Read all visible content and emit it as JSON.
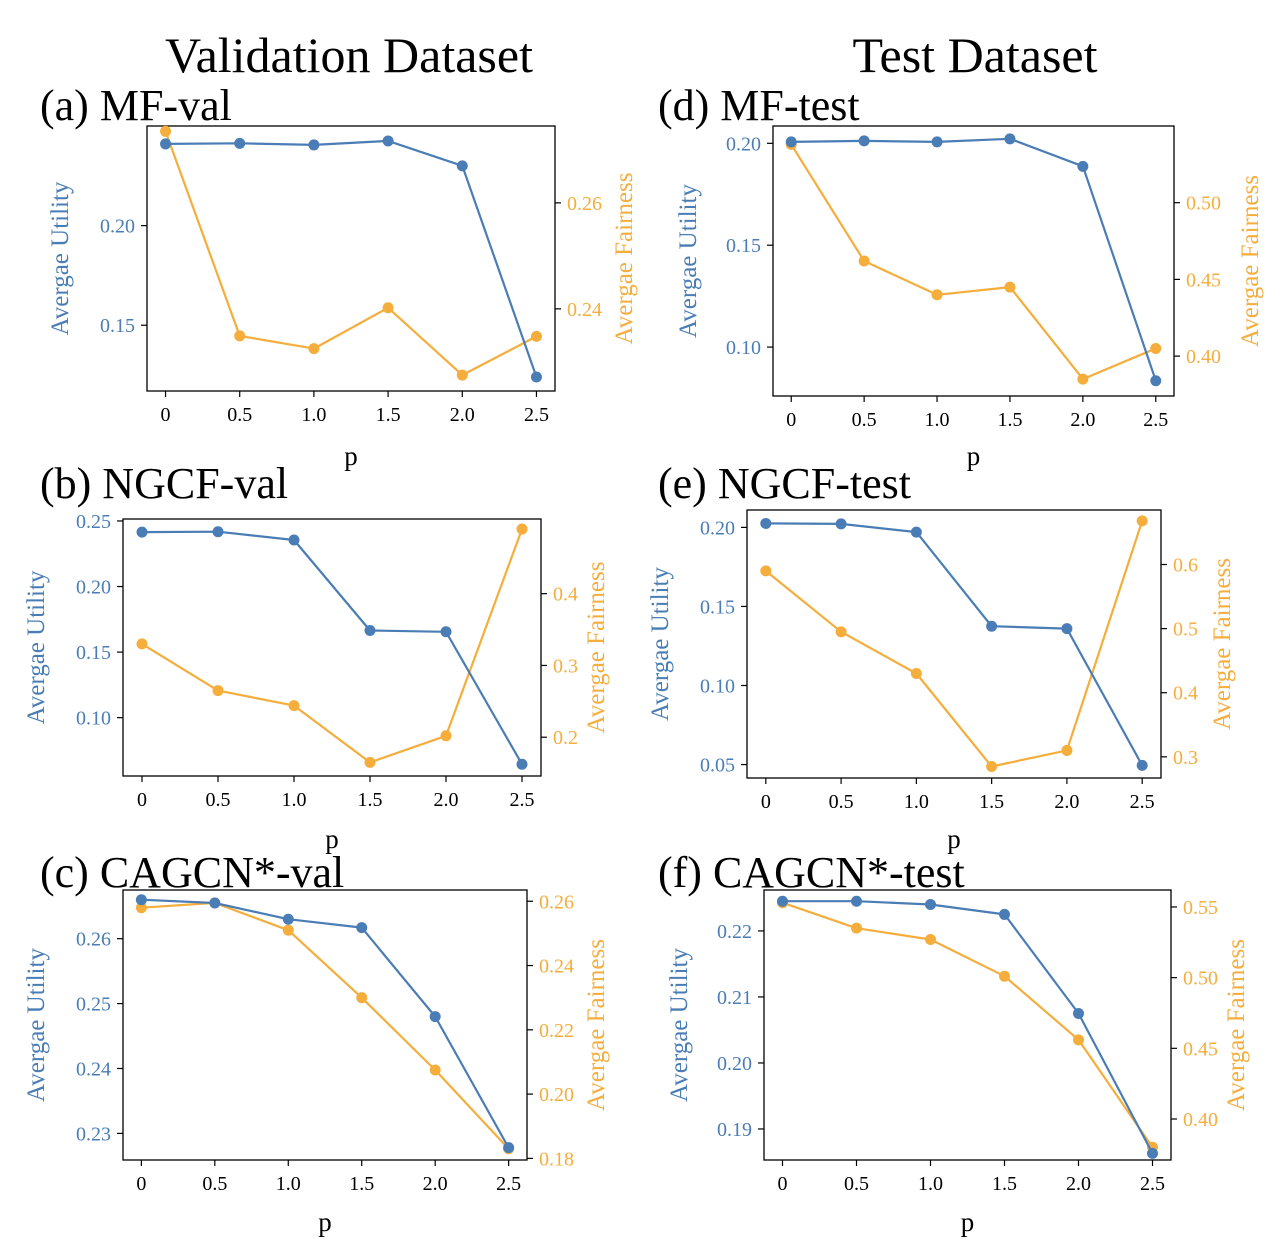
{
  "column_titles": [
    "Validation Dataset",
    "Test Dataset"
  ],
  "colors": {
    "utility": "#4a7db5",
    "fairness": "#f5ad3b",
    "axis": "#000000"
  },
  "chart_data": [
    {
      "id": "a",
      "title": "(a) MF-val",
      "type": "line",
      "xlabel": "p",
      "ylabel_left": "Avergae Utility",
      "ylabel_right": "Avergae Fairness",
      "x": [
        0,
        0.5,
        1.0,
        1.5,
        2.0,
        2.5
      ],
      "x_tick_labels": [
        "0",
        "0.5",
        "1.0",
        "1.5",
        "2.0",
        "2.5"
      ],
      "xlim": [
        -0.125,
        2.625
      ],
      "left": {
        "name": "Avergae Utility",
        "values": [
          0.241,
          0.2413,
          0.2405,
          0.2425,
          0.23,
          0.124
        ],
        "ylim": [
          0.117,
          0.25
        ],
        "ticks": [
          0.15,
          0.2
        ],
        "tick_labels": [
          "0.15",
          "0.20"
        ]
      },
      "right": {
        "name": "Avergae Fairness",
        "values": [
          0.2735,
          0.2349,
          0.2325,
          0.2402,
          0.2275,
          0.2348
        ],
        "ylim": [
          0.2245,
          0.2745
        ],
        "ticks": [
          0.24,
          0.26
        ],
        "tick_labels": [
          "0.24",
          "0.26"
        ]
      }
    },
    {
      "id": "b",
      "title": "(b) NGCF-val",
      "type": "line",
      "xlabel": "p",
      "ylabel_left": "Avergae Utility",
      "ylabel_right": "Avergae Fairness",
      "x": [
        0,
        0.5,
        1.0,
        1.5,
        2.0,
        2.5
      ],
      "x_tick_labels": [
        "0",
        "0.5",
        "1.0",
        "1.5",
        "2.0",
        "2.5"
      ],
      "xlim": [
        -0.125,
        2.625
      ],
      "left": {
        "name": "Avergae Utility",
        "values": [
          0.2415,
          0.2418,
          0.2355,
          0.1665,
          0.1655,
          0.0645
        ],
        "ylim": [
          0.0555,
          0.2515
        ],
        "ticks": [
          0.1,
          0.15,
          0.2,
          0.25
        ],
        "tick_labels": [
          "0.10",
          "0.15",
          "0.20",
          "0.25"
        ]
      },
      "right": {
        "name": "Avergae Fairness",
        "values": [
          0.33,
          0.265,
          0.244,
          0.165,
          0.202,
          0.49
        ],
        "ylim": [
          0.146,
          0.504
        ],
        "ticks": [
          0.2,
          0.3,
          0.4
        ],
        "tick_labels": [
          "0.2",
          "0.3",
          "0.4"
        ]
      }
    },
    {
      "id": "c",
      "title": "(c) CAGCN*-val",
      "type": "line",
      "xlabel": "p",
      "ylabel_left": "Avergae Utility",
      "ylabel_right": "Avergae Fairness",
      "x": [
        0,
        0.5,
        1.0,
        1.5,
        2.0,
        2.5
      ],
      "x_tick_labels": [
        "0",
        "0.5",
        "1.0",
        "1.5",
        "2.0",
        "2.5"
      ],
      "xlim": [
        -0.125,
        2.625
      ],
      "left": {
        "name": "Avergae Utility",
        "values": [
          0.266,
          0.2655,
          0.263,
          0.2617,
          0.248,
          0.2278
        ],
        "ylim": [
          0.2259,
          0.2675
        ],
        "ticks": [
          0.23,
          0.24,
          0.25,
          0.26
        ],
        "tick_labels": [
          "0.23",
          "0.24",
          "0.25",
          "0.26"
        ]
      },
      "right": {
        "name": "Avergae Fairness",
        "values": [
          0.258,
          0.2595,
          0.251,
          0.23,
          0.2075,
          0.183
        ],
        "ylim": [
          0.1795,
          0.2635
        ],
        "ticks": [
          0.18,
          0.2,
          0.22,
          0.24,
          0.26
        ],
        "tick_labels": [
          "0.18",
          "0.20",
          "0.22",
          "0.24",
          "0.26"
        ]
      }
    },
    {
      "id": "d",
      "title": "(d) MF-test",
      "type": "line",
      "xlabel": "p",
      "ylabel_left": "Avergae Utility",
      "ylabel_right": "Avergae Fairness",
      "x": [
        0,
        0.5,
        1.0,
        1.5,
        2.0,
        2.5
      ],
      "x_tick_labels": [
        "0",
        "0.5",
        "1.0",
        "1.5",
        "2.0",
        "2.5"
      ],
      "xlim": [
        -0.125,
        2.625
      ],
      "left": {
        "name": "Avergae Utility",
        "values": [
          0.2007,
          0.2012,
          0.2007,
          0.2022,
          0.1887,
          0.0835
        ],
        "ylim": [
          0.076,
          0.2085
        ],
        "ticks": [
          0.1,
          0.15,
          0.2
        ],
        "tick_labels": [
          "0.10",
          "0.15",
          "0.20"
        ]
      },
      "right": {
        "name": "Avergae Fairness",
        "values": [
          0.538,
          0.462,
          0.44,
          0.445,
          0.385,
          0.405
        ],
        "ylim": [
          0.374,
          0.55
        ],
        "ticks": [
          0.4,
          0.45,
          0.5
        ],
        "tick_labels": [
          "0.40",
          "0.45",
          "0.50"
        ]
      }
    },
    {
      "id": "e",
      "title": "(e) NGCF-test",
      "type": "line",
      "xlabel": "p",
      "ylabel_left": "Avergae Utility",
      "ylabel_right": "Avergae Fairness",
      "x": [
        0,
        0.5,
        1.0,
        1.5,
        2.0,
        2.5
      ],
      "x_tick_labels": [
        "0",
        "0.5",
        "1.0",
        "1.5",
        "2.0",
        "2.5"
      ],
      "xlim": [
        -0.125,
        2.625
      ],
      "left": {
        "name": "Avergae Utility",
        "values": [
          0.2025,
          0.2022,
          0.197,
          0.1375,
          0.136,
          0.0495
        ],
        "ylim": [
          0.0415,
          0.211
        ],
        "ticks": [
          0.05,
          0.1,
          0.15,
          0.2
        ],
        "tick_labels": [
          "0.05",
          "0.10",
          "0.15",
          "0.20"
        ]
      },
      "right": {
        "name": "Avergae Fairness",
        "values": [
          0.59,
          0.495,
          0.43,
          0.285,
          0.31,
          0.668
        ],
        "ylim": [
          0.267,
          0.685
        ],
        "ticks": [
          0.3,
          0.4,
          0.5,
          0.6
        ],
        "tick_labels": [
          "0.3",
          "0.4",
          "0.5",
          "0.6"
        ]
      }
    },
    {
      "id": "f",
      "title": "(f) CAGCN*-test",
      "type": "line",
      "xlabel": "p",
      "ylabel_left": "Avergae Utility",
      "ylabel_right": "Avergae Fairness",
      "x": [
        0,
        0.5,
        1.0,
        1.5,
        2.0,
        2.5
      ],
      "x_tick_labels": [
        "0",
        "0.5",
        "1.0",
        "1.5",
        "2.0",
        "2.5"
      ],
      "xlim": [
        -0.125,
        2.625
      ],
      "left": {
        "name": "Avergae Utility",
        "values": [
          0.2245,
          0.2245,
          0.224,
          0.2225,
          0.2075,
          0.1863
        ],
        "ylim": [
          0.1853,
          0.2262
        ],
        "ticks": [
          0.19,
          0.2,
          0.21,
          0.22
        ],
        "tick_labels": [
          "0.19",
          "0.20",
          "0.21",
          "0.22"
        ]
      },
      "right": {
        "name": "Avergae Fairness",
        "values": [
          0.553,
          0.535,
          0.527,
          0.501,
          0.456,
          0.38
        ],
        "ylim": [
          0.371,
          0.562
        ],
        "ticks": [
          0.4,
          0.45,
          0.5,
          0.55
        ],
        "tick_labels": [
          "0.40",
          "0.45",
          "0.50",
          "0.55"
        ]
      }
    }
  ]
}
